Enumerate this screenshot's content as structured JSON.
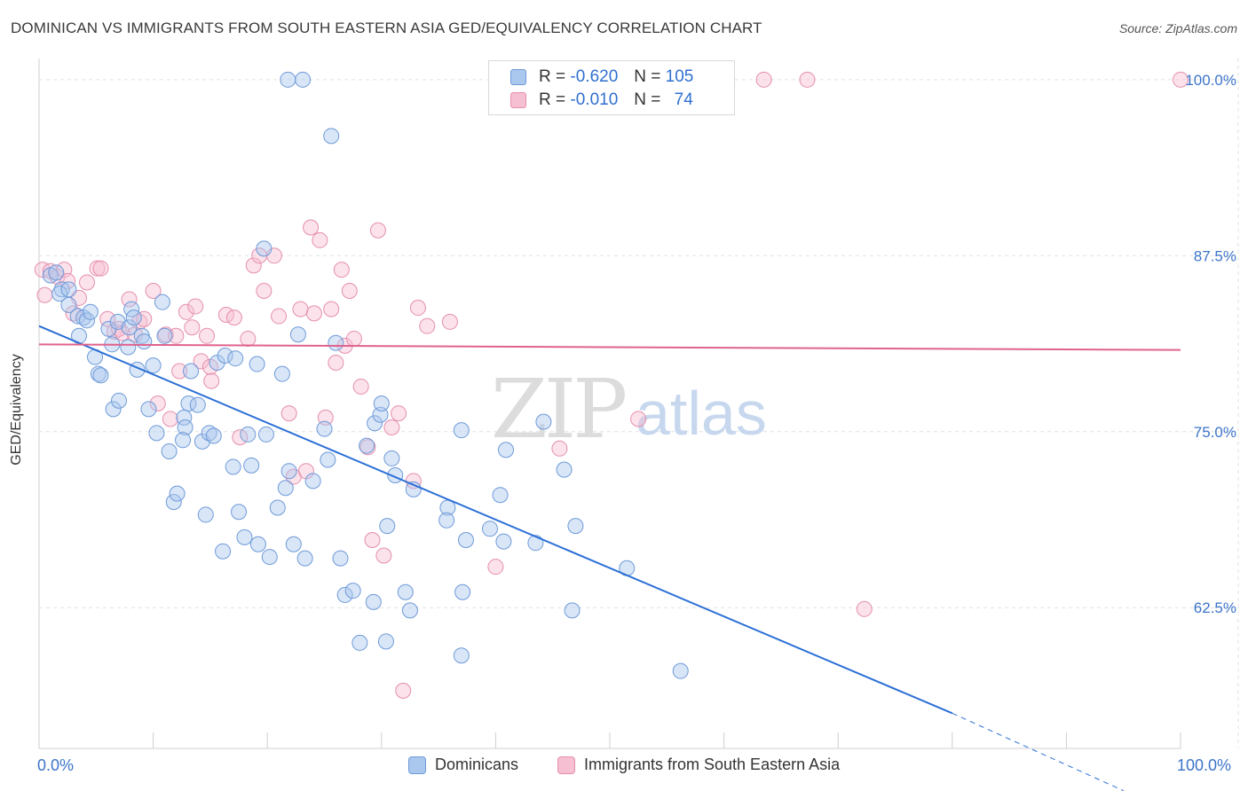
{
  "title": "DOMINICAN VS IMMIGRANTS FROM SOUTH EASTERN ASIA GED/EQUIVALENCY CORRELATION CHART",
  "source": "Source: ZipAtlas.com",
  "watermark": {
    "zip": "ZIP",
    "atlas": "atlas"
  },
  "legend_top": {
    "rows": [
      {
        "r_label": "R =",
        "r_value": "-0.620",
        "n_label": "N =",
        "n_value": "105"
      },
      {
        "r_label": "R =",
        "r_value": "-0.010",
        "n_label": "N =",
        "n_value": "74"
      }
    ]
  },
  "legend_bottom": {
    "items": [
      "Dominicans",
      "Immigrants from South Eastern Asia"
    ]
  },
  "colors": {
    "blue_fill": "#aac8ee",
    "blue_stroke": "#6e9ad9",
    "blue_line": "#2b6fd6",
    "pink_fill": "#f6bfd2",
    "pink_stroke": "#e58fae",
    "pink_line": "#e0628f",
    "tick_label": "#3b74c9",
    "grid": "#e2e2e2"
  },
  "chart_data": {
    "type": "scatter",
    "title": "DOMINICAN VS IMMIGRANTS FROM SOUTH EASTERN ASIA GED/EQUIVALENCY CORRELATION CHART",
    "xlabel": "",
    "ylabel": "GED/Equivalency",
    "xlim": [
      0,
      100
    ],
    "ylim": [
      52.5,
      101.5
    ],
    "x_tick_labels": [
      "0.0%",
      "100.0%"
    ],
    "y_ticks": [
      62.5,
      75.0,
      87.5,
      100.0
    ],
    "y_tick_labels": [
      "62.5%",
      "75.0%",
      "87.5%",
      "100.0%"
    ],
    "grid": true,
    "legend_position": "top-center",
    "series": [
      {
        "name": "Dominicans",
        "r": -0.62,
        "n": 105,
        "trend": {
          "x": [
            0,
            80
          ],
          "y": [
            82.5,
            55.0
          ],
          "dashed_to": [
            95,
            49.5
          ]
        },
        "points": [
          [
            1,
            86.1
          ],
          [
            1.5,
            86.3
          ],
          [
            2,
            85.1
          ],
          [
            1.8,
            84.8
          ],
          [
            2.6,
            85.1
          ],
          [
            2.6,
            84.0
          ],
          [
            3.4,
            83.2
          ],
          [
            3.9,
            83.1
          ],
          [
            4.2,
            82.9
          ],
          [
            4.5,
            83.5
          ],
          [
            3.5,
            81.8
          ],
          [
            4.9,
            80.3
          ],
          [
            5.2,
            79.1
          ],
          [
            5.4,
            79.0
          ],
          [
            6.1,
            82.3
          ],
          [
            6.4,
            81.2
          ],
          [
            6.5,
            76.6
          ],
          [
            7.0,
            77.2
          ],
          [
            6.9,
            82.8
          ],
          [
            7.8,
            81.0
          ],
          [
            7.9,
            82.4
          ],
          [
            8.1,
            83.7
          ],
          [
            8.3,
            83.1
          ],
          [
            8.6,
            79.4
          ],
          [
            9.0,
            81.8
          ],
          [
            9.2,
            81.4
          ],
          [
            9.6,
            76.6
          ],
          [
            10.0,
            79.7
          ],
          [
            10.3,
            74.9
          ],
          [
            10.8,
            84.2
          ],
          [
            11.0,
            81.8
          ],
          [
            11.4,
            73.6
          ],
          [
            11.8,
            70.0
          ],
          [
            12.1,
            70.6
          ],
          [
            12.7,
            76.0
          ],
          [
            12.8,
            75.3
          ],
          [
            13.1,
            77.0
          ],
          [
            13.3,
            79.3
          ],
          [
            13.9,
            76.9
          ],
          [
            14.3,
            74.3
          ],
          [
            14.6,
            69.1
          ],
          [
            14.9,
            74.9
          ],
          [
            15.3,
            74.7
          ],
          [
            15.6,
            79.9
          ],
          [
            16.3,
            80.4
          ],
          [
            16.1,
            66.5
          ],
          [
            17.2,
            80.2
          ],
          [
            17.5,
            69.3
          ],
          [
            18.0,
            67.5
          ],
          [
            18.3,
            74.8
          ],
          [
            18.6,
            72.6
          ],
          [
            19.1,
            79.8
          ],
          [
            19.2,
            67.0
          ],
          [
            19.7,
            88.0
          ],
          [
            19.9,
            74.8
          ],
          [
            20.2,
            66.1
          ],
          [
            20.9,
            69.6
          ],
          [
            21.3,
            79.1
          ],
          [
            21.6,
            71.0
          ],
          [
            21.9,
            72.2
          ],
          [
            22.3,
            67.0
          ],
          [
            22.7,
            81.9
          ],
          [
            21.8,
            100.0
          ],
          [
            23.1,
            100.0
          ],
          [
            23.3,
            66.0
          ],
          [
            24.0,
            71.5
          ],
          [
            25.0,
            75.2
          ],
          [
            25.3,
            73.0
          ],
          [
            25.6,
            96.0
          ],
          [
            26.0,
            81.3
          ],
          [
            26.4,
            66.0
          ],
          [
            26.8,
            63.4
          ],
          [
            27.5,
            63.7
          ],
          [
            28.1,
            60.0
          ],
          [
            28.7,
            74.0
          ],
          [
            29.4,
            75.6
          ],
          [
            29.3,
            62.9
          ],
          [
            29.9,
            76.2
          ],
          [
            30.4,
            60.1
          ],
          [
            30.5,
            68.3
          ],
          [
            30.9,
            73.1
          ],
          [
            31.2,
            71.9
          ],
          [
            32.1,
            63.6
          ],
          [
            32.5,
            62.3
          ],
          [
            32.8,
            70.9
          ],
          [
            35.8,
            69.6
          ],
          [
            35.7,
            68.7
          ],
          [
            37.0,
            59.1
          ],
          [
            37.1,
            63.6
          ],
          [
            37.4,
            67.3
          ],
          [
            39.5,
            68.1
          ],
          [
            40.4,
            70.5
          ],
          [
            40.9,
            73.7
          ],
          [
            40.7,
            67.2
          ],
          [
            43.5,
            67.1
          ],
          [
            44.2,
            75.7
          ],
          [
            46.0,
            72.3
          ],
          [
            46.7,
            62.3
          ],
          [
            47.0,
            68.3
          ],
          [
            51.5,
            65.3
          ],
          [
            56.2,
            58.0
          ],
          [
            37.0,
            75.1
          ],
          [
            30.0,
            77.0
          ],
          [
            17.0,
            72.5
          ],
          [
            12.6,
            74.4
          ]
        ]
      },
      {
        "name": "Immigrants from South Eastern Asia",
        "r": -0.01,
        "n": 74,
        "trend": {
          "x": [
            0,
            100
          ],
          "y": [
            81.2,
            80.8
          ]
        },
        "points": [
          [
            0.3,
            86.5
          ],
          [
            0.5,
            84.7
          ],
          [
            1.0,
            86.4
          ],
          [
            1.6,
            86.0
          ],
          [
            2.2,
            86.5
          ],
          [
            2.5,
            85.7
          ],
          [
            3.0,
            83.4
          ],
          [
            3.5,
            84.5
          ],
          [
            4.2,
            85.6
          ],
          [
            5.1,
            86.6
          ],
          [
            5.4,
            86.6
          ],
          [
            6.0,
            83.0
          ],
          [
            6.6,
            82.1
          ],
          [
            7.0,
            82.3
          ],
          [
            7.3,
            82.0
          ],
          [
            7.9,
            84.4
          ],
          [
            8.4,
            81.9
          ],
          [
            8.8,
            82.8
          ],
          [
            9.2,
            83.0
          ],
          [
            10.0,
            85.0
          ],
          [
            10.4,
            77.0
          ],
          [
            11.1,
            81.9
          ],
          [
            11.5,
            75.9
          ],
          [
            12.0,
            81.8
          ],
          [
            12.3,
            79.3
          ],
          [
            12.9,
            83.5
          ],
          [
            13.4,
            82.4
          ],
          [
            13.7,
            83.9
          ],
          [
            14.2,
            80.0
          ],
          [
            14.7,
            81.8
          ],
          [
            15.0,
            79.6
          ],
          [
            15.1,
            78.6
          ],
          [
            16.4,
            83.3
          ],
          [
            17.1,
            83.1
          ],
          [
            17.6,
            74.6
          ],
          [
            18.3,
            81.6
          ],
          [
            18.8,
            86.8
          ],
          [
            19.3,
            87.5
          ],
          [
            19.7,
            85.0
          ],
          [
            20.6,
            87.5
          ],
          [
            21.0,
            83.2
          ],
          [
            21.9,
            76.3
          ],
          [
            22.3,
            71.8
          ],
          [
            22.9,
            83.7
          ],
          [
            23.4,
            72.2
          ],
          [
            23.8,
            89.5
          ],
          [
            24.1,
            83.4
          ],
          [
            24.6,
            88.6
          ],
          [
            25.1,
            76.0
          ],
          [
            25.6,
            83.7
          ],
          [
            26.0,
            79.9
          ],
          [
            26.5,
            86.5
          ],
          [
            26.8,
            81.1
          ],
          [
            27.2,
            85.0
          ],
          [
            27.6,
            81.6
          ],
          [
            28.2,
            78.2
          ],
          [
            28.8,
            73.9
          ],
          [
            29.2,
            67.3
          ],
          [
            29.7,
            89.3
          ],
          [
            30.2,
            66.2
          ],
          [
            30.9,
            75.3
          ],
          [
            31.5,
            76.3
          ],
          [
            31.9,
            56.6
          ],
          [
            32.8,
            71.5
          ],
          [
            33.2,
            83.8
          ],
          [
            34.0,
            82.5
          ],
          [
            36.0,
            82.8
          ],
          [
            40.0,
            65.4
          ],
          [
            45.6,
            73.8
          ],
          [
            52.5,
            75.9
          ],
          [
            63.5,
            100.0
          ],
          [
            67.3,
            100.0
          ],
          [
            72.3,
            62.4
          ],
          [
            100.0,
            100.0
          ]
        ]
      }
    ]
  }
}
